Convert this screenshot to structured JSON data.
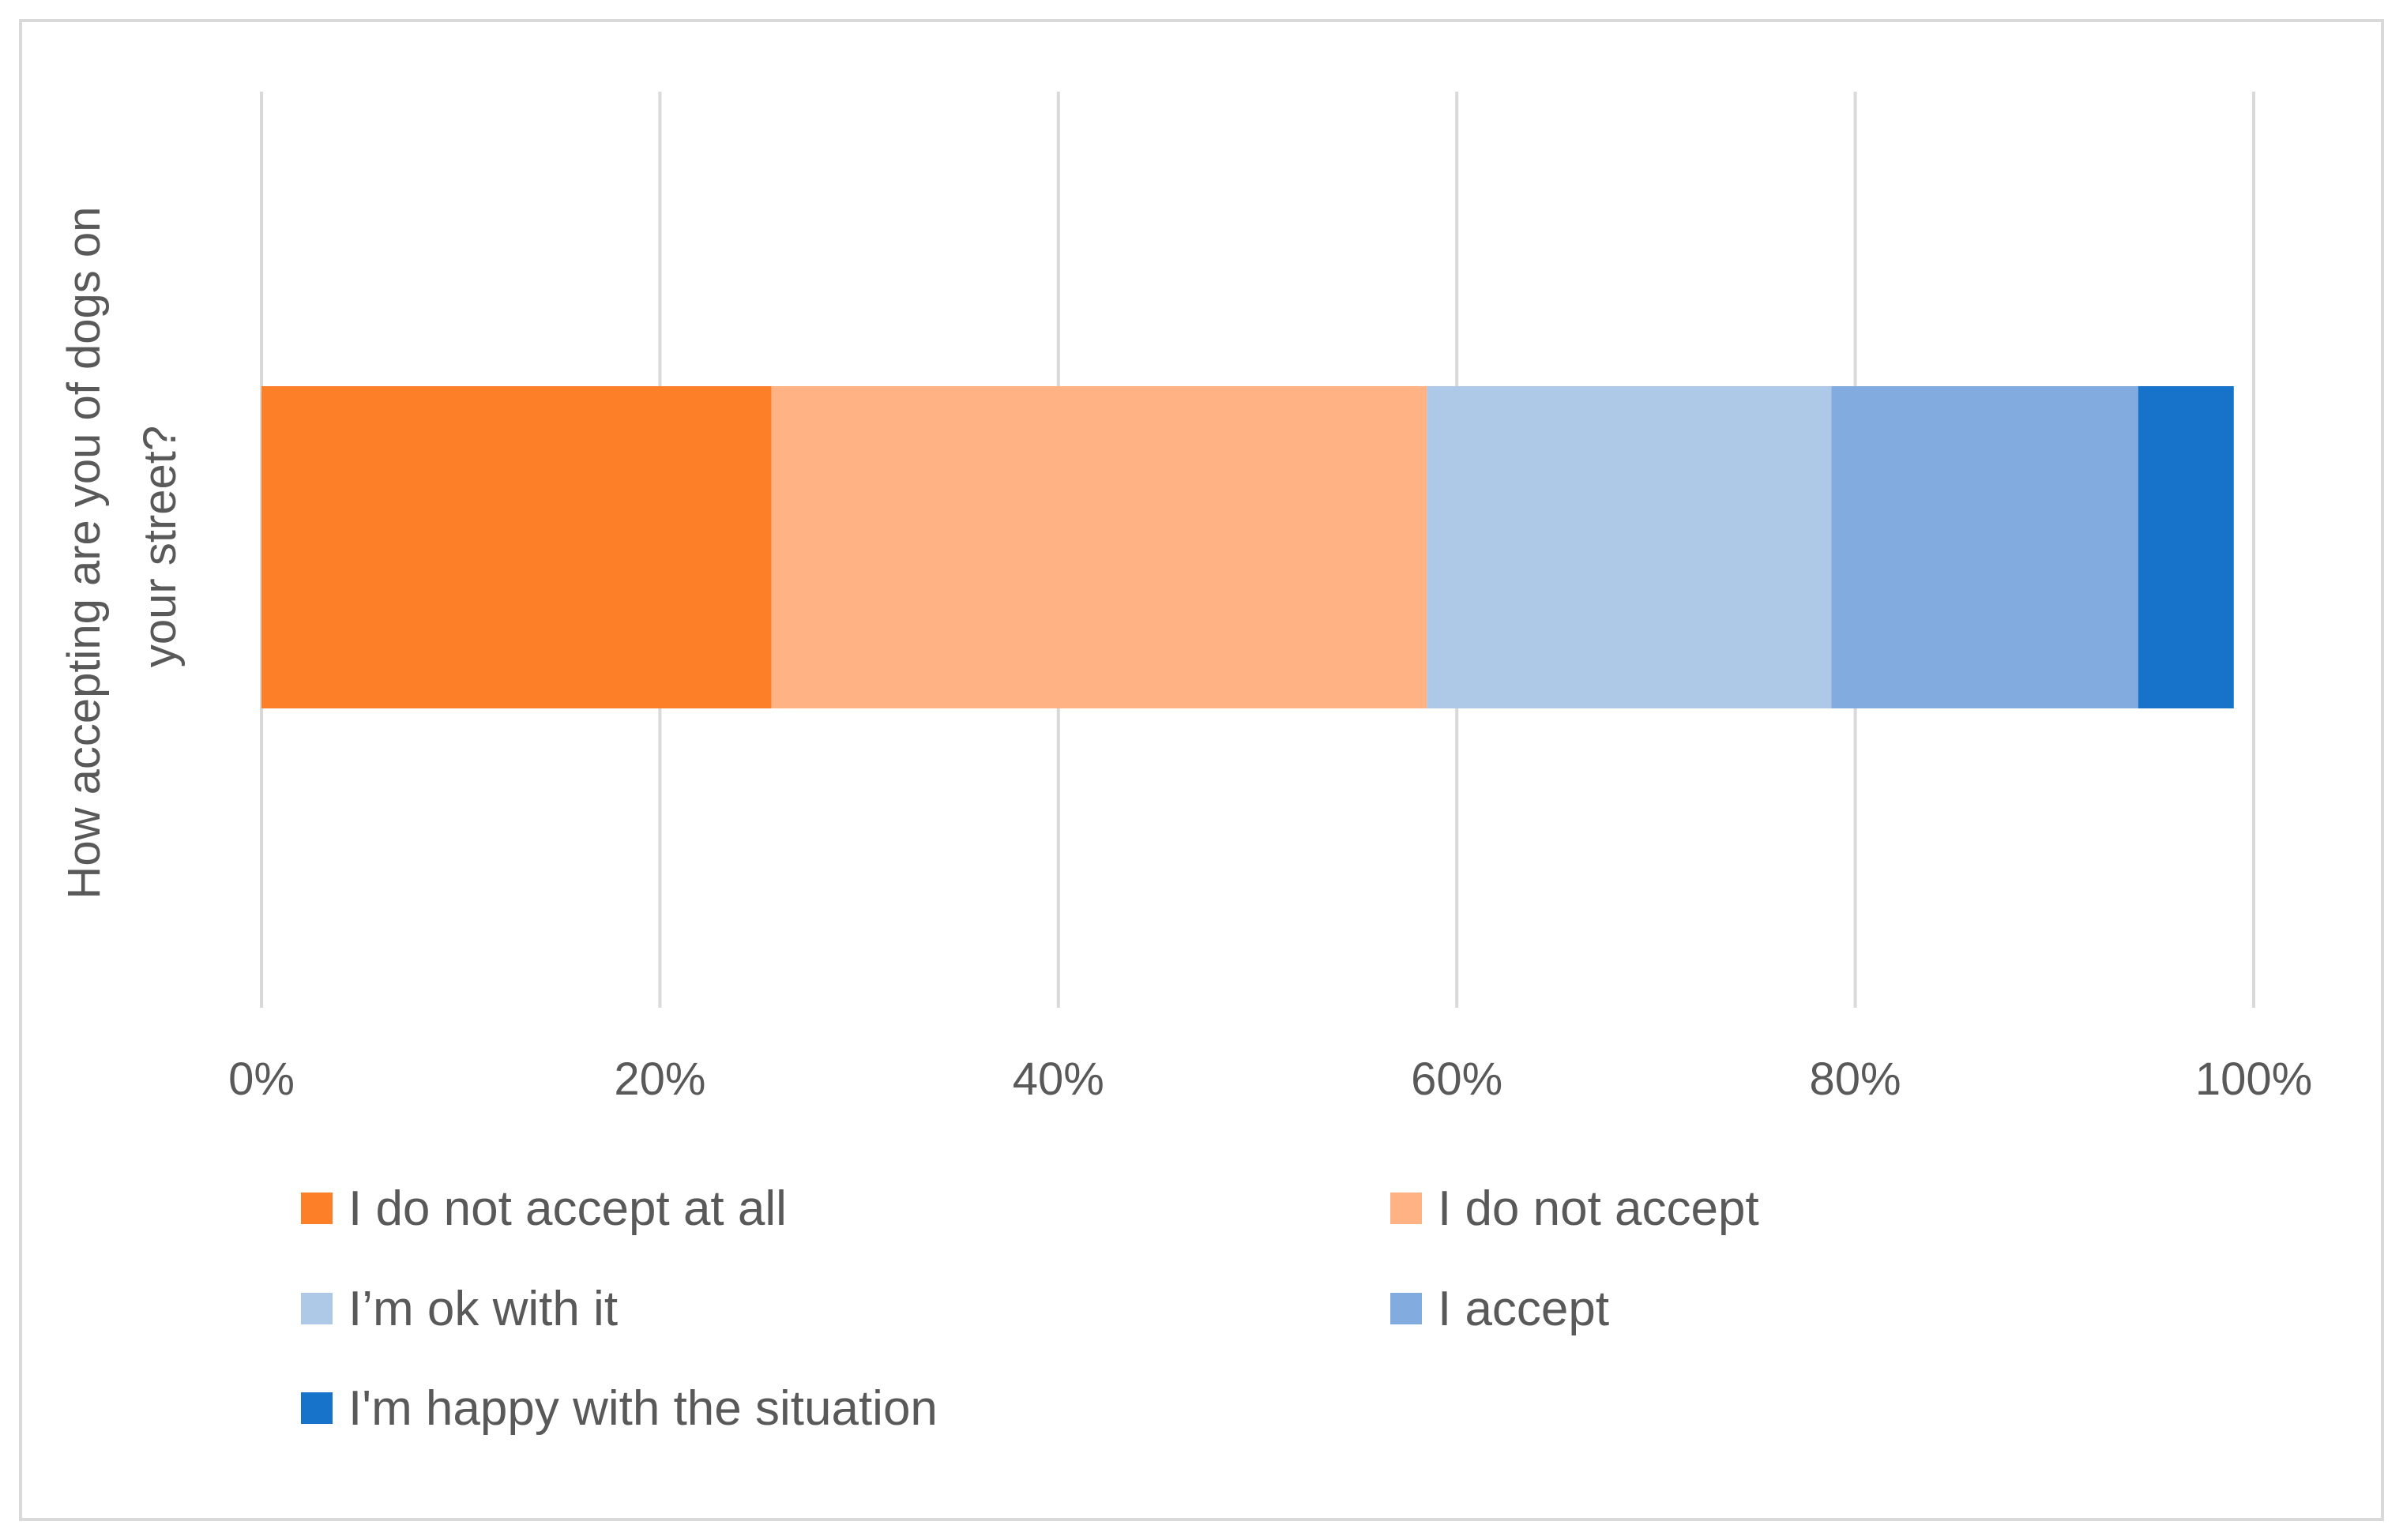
{
  "chart_data": {
    "type": "bar",
    "orientation": "horizontal",
    "stacked": "percent",
    "title": "",
    "xlabel": "",
    "ylabel": "How accepting are you of dogs on your street?",
    "ylabel_lines": [
      "How accepting are you of dogs on",
      "your street?"
    ],
    "categories": [
      ""
    ],
    "xlim": [
      0,
      100
    ],
    "x_ticks": [
      0,
      20,
      40,
      60,
      80,
      100
    ],
    "x_tick_labels": [
      "0%",
      "20%",
      "40%",
      "60%",
      "80%",
      "100%"
    ],
    "grid": "vertical",
    "legend_position": "bottom",
    "series": [
      {
        "name": "I do not accept at all",
        "values": [
          25.6
        ],
        "color": "#fd7f28"
      },
      {
        "name": "I do not accept",
        "values": [
          32.9
        ],
        "color": "#ffb284"
      },
      {
        "name": "I’m ok with it",
        "values": [
          20.3
        ],
        "color": "#aec8e8"
      },
      {
        "name": "I accept",
        "values": [
          15.4
        ],
        "color": "#82ace0"
      },
      {
        "name": "I'm happy with the situation",
        "values": [
          4.8
        ],
        "color": "#1673c9"
      }
    ]
  }
}
